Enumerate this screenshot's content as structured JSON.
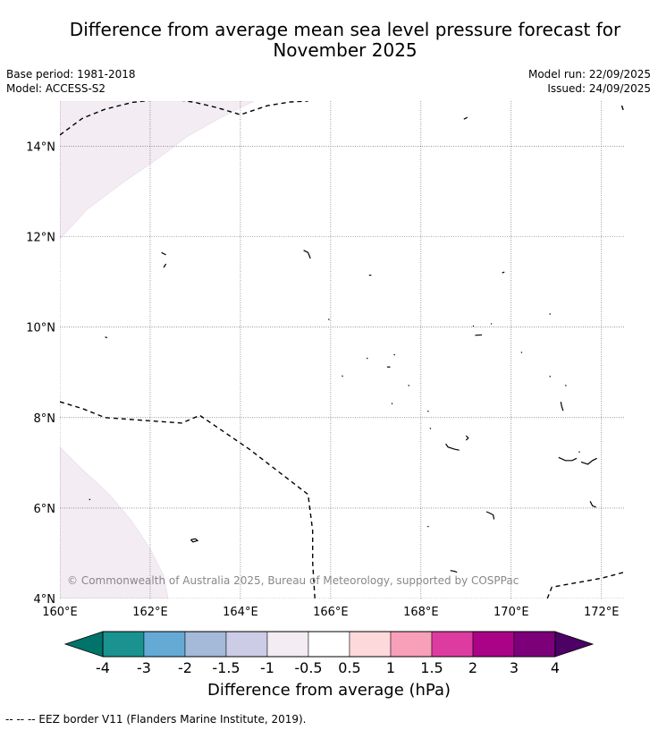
{
  "title_line1": "Difference from average mean sea level pressure forecast for",
  "title_line2": "November 2025",
  "base_period": "Base period: 1981-2018",
  "model": "Model: ACCESS-S2",
  "model_run": "Model run: 22/09/2025",
  "issued": "Issued: 24/09/2025",
  "copyright": "© Commonwealth of Australia 2025, Bureau of Meteorology, supported by COSPPac",
  "map": {
    "lon_range": [
      160,
      172.5
    ],
    "lat_range": [
      4,
      15
    ],
    "lat_ticks": [
      {
        "value": 14,
        "label": "14°N"
      },
      {
        "value": 12,
        "label": "12°N"
      },
      {
        "value": 10,
        "label": "10°N"
      },
      {
        "value": 8,
        "label": "8°N"
      },
      {
        "value": 6,
        "label": "6°N"
      },
      {
        "value": 4,
        "label": "4°N"
      }
    ],
    "lon_ticks": [
      {
        "value": 160,
        "label": "160°E"
      },
      {
        "value": 162,
        "label": "162°E"
      },
      {
        "value": 164,
        "label": "164°E"
      },
      {
        "value": 166,
        "label": "166°E"
      },
      {
        "value": 168,
        "label": "168°E"
      },
      {
        "value": 170,
        "label": "170°E"
      },
      {
        "value": 172,
        "label": "172°E"
      }
    ],
    "anomaly_regions": [
      {
        "name": "north-west",
        "category": "-1 to -0.5",
        "lonlat": [
          [
            160,
            11.95
          ],
          [
            160.6,
            12.6
          ],
          [
            161.4,
            13.2
          ],
          [
            162.2,
            13.75
          ],
          [
            162.8,
            14.2
          ],
          [
            163.5,
            14.6
          ],
          [
            164.0,
            14.85
          ],
          [
            164.3,
            15
          ],
          [
            160,
            15
          ]
        ]
      },
      {
        "name": "south-west",
        "category": "-1 to -0.5",
        "lonlat": [
          [
            160,
            7.35
          ],
          [
            160.5,
            6.85
          ],
          [
            161.1,
            6.3
          ],
          [
            161.6,
            5.7
          ],
          [
            162.0,
            5.1
          ],
          [
            162.3,
            4.5
          ],
          [
            162.4,
            4
          ],
          [
            160,
            4
          ]
        ]
      }
    ],
    "eez_borders": [
      [
        [
          160,
          14.25
        ],
        [
          160.5,
          14.62
        ],
        [
          161,
          14.82
        ],
        [
          161.6,
          14.97
        ],
        [
          162.4,
          15.06
        ],
        [
          163,
          14.97
        ],
        [
          163.5,
          14.85
        ],
        [
          164,
          14.7
        ],
        [
          164.6,
          14.9
        ],
        [
          165.1,
          14.98
        ],
        [
          165.5,
          15
        ]
      ],
      [
        [
          160,
          8.35
        ],
        [
          160.5,
          8.2
        ],
        [
          161,
          8.0
        ],
        [
          162,
          7.93
        ],
        [
          162.7,
          7.88
        ],
        [
          163.1,
          8.05
        ],
        [
          164.2,
          7.3
        ],
        [
          165.5,
          6.3
        ],
        [
          165.6,
          5.5
        ],
        [
          165.6,
          4.8
        ],
        [
          165.65,
          4
        ]
      ],
      [
        [
          170.8,
          4
        ],
        [
          170.9,
          4.25
        ],
        [
          172,
          4.45
        ],
        [
          172.5,
          4.58
        ]
      ],
      [
        [
          172.45,
          14.9
        ],
        [
          172.5,
          14.75
        ]
      ]
    ],
    "islands": [
      [
        [
          168.95,
          14.6
        ],
        [
          169.03,
          14.64
        ]
      ],
      [
        [
          162.25,
          11.65
        ],
        [
          162.35,
          11.6
        ]
      ],
      [
        [
          162.35,
          11.4
        ],
        [
          162.3,
          11.32
        ]
      ],
      [
        [
          165.4,
          11.7
        ],
        [
          165.5,
          11.65
        ],
        [
          165.55,
          11.52
        ]
      ],
      [
        [
          166.85,
          11.15
        ],
        [
          166.9,
          11.15
        ]
      ],
      [
        [
          169.8,
          11.2
        ],
        [
          169.85,
          11.22
        ]
      ],
      [
        [
          161.0,
          9.78
        ],
        [
          161.05,
          9.77
        ]
      ],
      [
        [
          165.95,
          10.18
        ],
        [
          165.97,
          10.16
        ]
      ],
      [
        [
          169.55,
          10.08
        ],
        [
          169.57,
          10.07
        ]
      ],
      [
        [
          170.85,
          10.3
        ],
        [
          170.87,
          10.28
        ]
      ],
      [
        [
          169.15,
          10.02
        ],
        [
          169.17,
          10.03
        ]
      ],
      [
        [
          169.2,
          9.82
        ],
        [
          169.35,
          9.83
        ]
      ],
      [
        [
          170.22,
          9.45
        ],
        [
          170.24,
          9.43
        ]
      ],
      [
        [
          167.4,
          9.4
        ],
        [
          167.42,
          9.38
        ]
      ],
      [
        [
          166.8,
          9.32
        ],
        [
          166.82,
          9.3
        ]
      ],
      [
        [
          167.25,
          9.12
        ],
        [
          167.32,
          9.12
        ]
      ],
      [
        [
          166.25,
          8.93
        ],
        [
          166.27,
          8.91
        ]
      ],
      [
        [
          170.85,
          8.92
        ],
        [
          170.87,
          8.9
        ]
      ],
      [
        [
          167.72,
          8.72
        ],
        [
          167.74,
          8.7
        ]
      ],
      [
        [
          171.2,
          8.72
        ],
        [
          171.22,
          8.7
        ]
      ],
      [
        [
          171.1,
          8.35
        ],
        [
          171.12,
          8.25
        ],
        [
          171.15,
          8.15
        ]
      ],
      [
        [
          167.35,
          8.32
        ],
        [
          167.37,
          8.3
        ]
      ],
      [
        [
          168.15,
          8.15
        ],
        [
          168.17,
          8.13
        ]
      ],
      [
        [
          168.2,
          7.77
        ],
        [
          168.22,
          7.75
        ]
      ],
      [
        [
          169.0,
          7.6
        ],
        [
          169.05,
          7.55
        ],
        [
          169.0,
          7.5
        ]
      ],
      [
        [
          168.55,
          7.42
        ],
        [
          168.6,
          7.35
        ],
        [
          168.75,
          7.3
        ],
        [
          168.85,
          7.28
        ]
      ],
      [
        [
          171.5,
          7.25
        ],
        [
          171.52,
          7.23
        ]
      ],
      [
        [
          171.05,
          7.12
        ],
        [
          171.2,
          7.05
        ],
        [
          171.35,
          7.05
        ],
        [
          171.45,
          7.1
        ]
      ],
      [
        [
          171.55,
          7.02
        ],
        [
          171.7,
          6.97
        ],
        [
          171.8,
          7.05
        ],
        [
          171.9,
          7.1
        ]
      ],
      [
        [
          160.65,
          6.2
        ],
        [
          160.67,
          6.18
        ]
      ],
      [
        [
          171.75,
          6.15
        ],
        [
          171.8,
          6.05
        ],
        [
          171.88,
          6.02
        ]
      ],
      [
        [
          169.45,
          5.92
        ],
        [
          169.5,
          5.9
        ],
        [
          169.6,
          5.85
        ],
        [
          169.62,
          5.75
        ]
      ],
      [
        [
          168.15,
          5.6
        ],
        [
          168.17,
          5.58
        ]
      ],
      [
        [
          162.9,
          5.3
        ],
        [
          163.0,
          5.32
        ],
        [
          163.05,
          5.28
        ],
        [
          162.95,
          5.25
        ],
        [
          162.9,
          5.3
        ]
      ],
      [
        [
          168.65,
          4.62
        ],
        [
          168.75,
          4.6
        ],
        [
          168.8,
          4.58
        ]
      ]
    ]
  },
  "colorbar": {
    "title": "Difference from average (hPa)",
    "under_color": "#00736b",
    "over_color": "#4d0066",
    "bins": [
      "#1a9390",
      "#65aad5",
      "#a5b9d9",
      "#ccccE6",
      "#f3ecf3",
      "#ffffff",
      "#fdd9dc",
      "#f89fba",
      "#dd3ba0",
      "#ab0388",
      "#7b007a"
    ],
    "tick_labels": [
      "-4",
      "-3",
      "-2",
      "-1.5",
      "-1",
      "-0.5",
      "0.5",
      "1",
      "1.5",
      "2",
      "3",
      "4"
    ]
  },
  "footnote": "-- -- -- EEZ border V11 (Flanders Marine Institute, 2019)."
}
